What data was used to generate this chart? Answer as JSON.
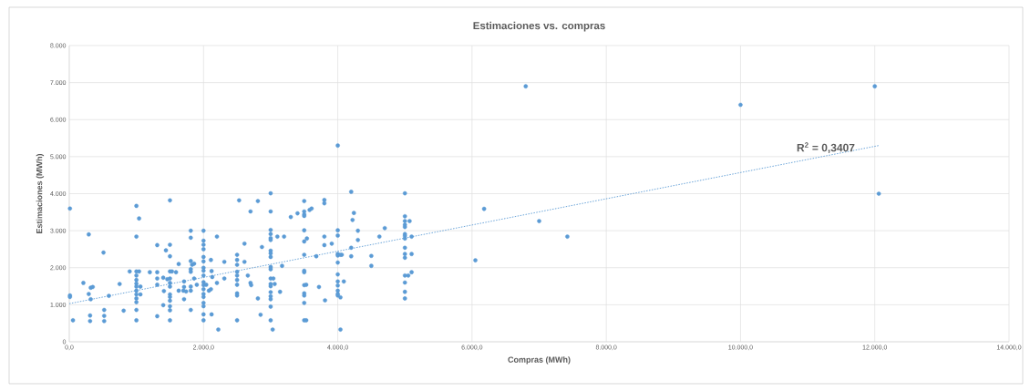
{
  "chart_data": {
    "type": "scatter",
    "title": "Estimaciones vs. compras",
    "xlabel": "Compras (MWh)",
    "ylabel": "Estimaciones (MWh)",
    "xlim": [
      0,
      14000
    ],
    "ylim": [
      0,
      8000
    ],
    "xticks": [
      {
        "value": 0,
        "label": "0,0"
      },
      {
        "value": 2000,
        "label": "2.000,0"
      },
      {
        "value": 4000,
        "label": "4.000,0"
      },
      {
        "value": 6000,
        "label": "6.000,0"
      },
      {
        "value": 8000,
        "label": "8.000,0"
      },
      {
        "value": 10000,
        "label": "10.000,0"
      },
      {
        "value": 12000,
        "label": "12.000,0"
      },
      {
        "value": 14000,
        "label": "14.000,0"
      }
    ],
    "yticks": [
      0,
      {
        "value": 1000,
        "label": "1.000"
      },
      {
        "value": 2000,
        "label": "2.000"
      },
      {
        "value": 3000,
        "label": "3.000"
      },
      {
        "value": 4000,
        "label": "4.000"
      },
      {
        "value": 5000,
        "label": "5.000"
      },
      {
        "value": 6000,
        "label": "6.000"
      },
      {
        "value": 7000,
        "label": "7.000"
      },
      {
        "value": 8000,
        "label": "8.000"
      }
    ],
    "grid": true,
    "annotations": [
      "R$^{2}$ = 0,3407"
    ],
    "series": [
      {
        "color": "#5b9bd5",
        "marker": "circle",
        "x": [
          10,
          10,
          10,
          55,
          290,
          210,
          320,
          350,
          290,
          320,
          310,
          310,
          510,
          520,
          520,
          520,
          590,
          750,
          810,
          900,
          1000,
          1040,
          1000,
          1000,
          1000,
          1000,
          1000,
          1000,
          1000,
          1000,
          1000,
          1000,
          1000,
          1000,
          1040,
          1060,
          1060,
          1200,
          1310,
          1310,
          1310,
          1310,
          1310,
          1400,
          1410,
          1440,
          1500,
          1500,
          1500,
          1500,
          1500,
          1500,
          1500,
          1500,
          1500,
          1500,
          1500,
          1500,
          1500,
          1400,
          1460,
          1530,
          1590,
          1630,
          1630,
          1700,
          1740,
          1710,
          1710,
          1710,
          1810,
          1810,
          1810,
          1810,
          1830,
          1860,
          1810,
          1810,
          1810,
          1810,
          1860,
          1900,
          2000,
          2000,
          2000,
          2000,
          2000,
          2000,
          2000,
          2000,
          2000,
          2000,
          2000,
          2000,
          2000,
          2000,
          2000,
          2000,
          2000,
          2000,
          2040,
          2080,
          2110,
          2110,
          2120,
          2130,
          2120,
          2220,
          2200,
          2200,
          2310,
          2310,
          2500,
          2500,
          2500,
          2500,
          2500,
          2500,
          2500,
          2500,
          2500,
          2500,
          2530,
          2610,
          2610,
          2660,
          2700,
          2700,
          2710,
          2810,
          2810,
          2850,
          2870,
          3000,
          3000,
          3000,
          3000,
          3000,
          3000,
          3000,
          3000,
          3000,
          3000,
          3000,
          3000,
          3000,
          3000,
          3000,
          3000,
          3000,
          3000,
          3000,
          3030,
          3040,
          3060,
          3100,
          3200,
          3140,
          3170,
          3300,
          3400,
          3500,
          3500,
          3500,
          3500,
          3500,
          3500,
          3500,
          3500,
          3500,
          3500,
          3500,
          3500,
          3500,
          3500,
          3530,
          3530,
          3540,
          3580,
          3610,
          3680,
          3720,
          3800,
          3800,
          3800,
          3800,
          3810,
          3910,
          4000,
          4000,
          4000,
          4000,
          4000,
          4000,
          4000,
          4000,
          4000,
          4000,
          4000,
          4000,
          4040,
          4040,
          4040,
          4060,
          4090,
          4200,
          4240,
          4220,
          4200,
          4200,
          4300,
          4300,
          4500,
          4500,
          4620,
          4700,
          5000,
          5000,
          5000,
          5000,
          5000,
          5000,
          5000,
          5000,
          5000,
          5000,
          5000,
          5000,
          5000,
          5000,
          5000,
          5070,
          5100,
          5050,
          5100,
          5100,
          6050,
          6180,
          7000,
          7420,
          6800,
          10000,
          12000,
          12060
        ],
        "values": [
          3600,
          1250,
          1210,
          580,
          2900,
          1590,
          1460,
          1480,
          1290,
          1150,
          710,
          560,
          2410,
          860,
          700,
          560,
          1240,
          1560,
          840,
          1900,
          3670,
          3330,
          2840,
          1900,
          1790,
          1670,
          1570,
          1490,
          1380,
          1280,
          1170,
          1070,
          860,
          580,
          1900,
          1490,
          1280,
          1880,
          2610,
          1880,
          1710,
          1540,
          690,
          990,
          1370,
          2470,
          2620,
          2310,
          3820,
          1900,
          1710,
          1590,
          1490,
          1280,
          1210,
          1110,
          960,
          850,
          580,
          1730,
          1690,
          1900,
          1880,
          2100,
          1380,
          1380,
          1360,
          1630,
          1480,
          1150,
          860,
          3000,
          2810,
          2180,
          2080,
          2110,
          1960,
          1890,
          1490,
          1380,
          1710,
          1540,
          3000,
          2730,
          2620,
          2500,
          2290,
          2170,
          2000,
          1920,
          1790,
          1610,
          1530,
          1420,
          1290,
          1210,
          1050,
          960,
          740,
          580,
          1540,
          1380,
          1420,
          2210,
          1910,
          1750,
          740,
          330,
          2840,
          1590,
          2160,
          1710,
          580,
          2350,
          2210,
          2080,
          1890,
          1790,
          1670,
          1540,
          1310,
          1250,
          3820,
          2650,
          2160,
          1790,
          3520,
          1590,
          1530,
          3800,
          1170,
          730,
          2560,
          4010,
          3520,
          3020,
          2910,
          2800,
          2750,
          2460,
          2390,
          2290,
          2020,
          1960,
          1710,
          1560,
          1500,
          1340,
          1230,
          1150,
          950,
          580,
          330,
          1710,
          1560,
          2840,
          2840,
          1350,
          2050,
          3370,
          3470,
          3800,
          3520,
          3440,
          3400,
          3010,
          2710,
          2350,
          1920,
          1880,
          1530,
          1310,
          1250,
          1050,
          580,
          580,
          1540,
          2790,
          3560,
          3600,
          2310,
          1480,
          3830,
          3740,
          2840,
          2610,
          1120,
          2650,
          5300,
          3010,
          2870,
          2370,
          2330,
          2140,
          1820,
          1630,
          1520,
          1380,
          1290,
          1250,
          1200,
          330,
          2350,
          2350,
          1630,
          4050,
          3480,
          3290,
          2540,
          2310,
          3000,
          2750,
          2320,
          2050,
          2840,
          3070,
          4010,
          3390,
          3260,
          3160,
          3100,
          2910,
          2860,
          2790,
          2540,
          2370,
          2270,
          1790,
          1600,
          1350,
          1170,
          3260,
          2840,
          1790,
          1880,
          2370,
          2200,
          3590,
          3260,
          2840,
          6900,
          6400,
          6900,
          4000
        ]
      },
      {
        "type": "line",
        "color": "#5b9bd5",
        "line_style": "dotted",
        "x": [
          0,
          12060
        ],
        "values": [
          1030,
          5300
        ]
      }
    ]
  }
}
